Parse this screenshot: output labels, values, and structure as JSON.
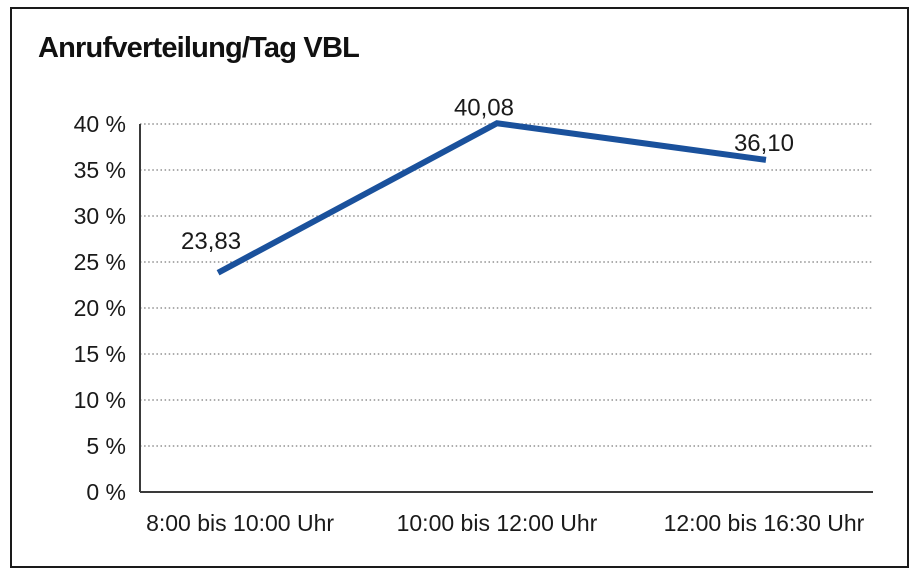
{
  "chart_data": {
    "type": "line",
    "title": "Anrufverteilung/Tag VBL",
    "categories": [
      "8:00 bis 10:00 Uhr",
      "10:00 bis 12:00 Uhr",
      "12:00 bis 16:30 Uhr"
    ],
    "values": [
      23.83,
      40.08,
      36.1
    ],
    "value_labels": [
      "23,83",
      "40,08",
      "36,10"
    ],
    "ylim": [
      0,
      40
    ],
    "yticks": [
      {
        "value": 0,
        "label": "0 %"
      },
      {
        "value": 5,
        "label": "5 %"
      },
      {
        "value": 10,
        "label": "10 %"
      },
      {
        "value": 15,
        "label": "15 %"
      },
      {
        "value": 20,
        "label": "20 %"
      },
      {
        "value": 25,
        "label": "25 %"
      },
      {
        "value": 30,
        "label": "30 %"
      },
      {
        "value": 35,
        "label": "35 %"
      },
      {
        "value": 40,
        "label": "40 %"
      }
    ],
    "xlabel": "",
    "ylabel": "",
    "grid": "horizontal-dotted",
    "legend": "none",
    "line_color": "#1A519C"
  }
}
